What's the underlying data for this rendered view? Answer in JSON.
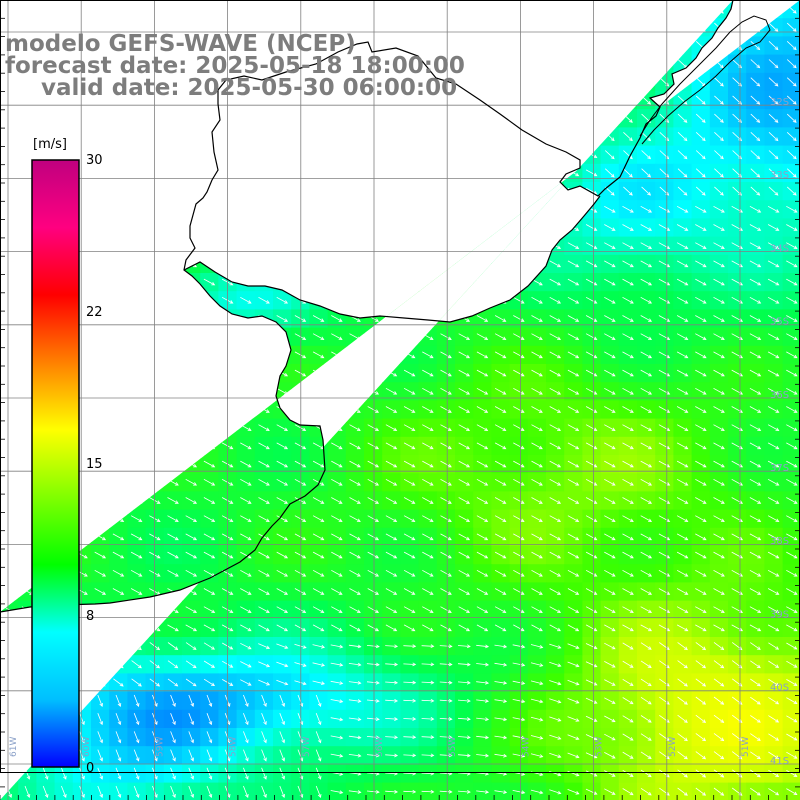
{
  "header": {
    "line1": "modelo GEFS-WAVE (NCEP)",
    "line2": "forecast date: 2025-05-18 18:00:00",
    "line3": "valid date: 2025-05-30 06:00:00"
  },
  "colorbar": {
    "unit": "[m/s]",
    "ticks": [
      "30",
      "22",
      "15",
      "8",
      "0"
    ],
    "tick_values": [
      30,
      22,
      15,
      8,
      0
    ],
    "range": [
      0,
      30
    ],
    "colors": [
      "#0000ff",
      "#00bfff",
      "#00ffff",
      "#00ff00",
      "#80ff00",
      "#ffff00",
      "#ff8000",
      "#ff0000",
      "#ff0080",
      "#c0007f"
    ]
  },
  "lat_labels": [
    "32S",
    "33S",
    "34S",
    "35S",
    "36S",
    "37S",
    "38S",
    "39S",
    "40S",
    "41S"
  ],
  "lon_labels": [
    "61W",
    "60W",
    "59W",
    "58W",
    "57W",
    "56W",
    "55W",
    "54W",
    "53W",
    "52W",
    "51W"
  ],
  "colors": {
    "title": "#7d7d7d",
    "grid": "#808080",
    "coast": "#000000",
    "arrows": "#ffffff",
    "labels": "#8aa0c8"
  }
}
